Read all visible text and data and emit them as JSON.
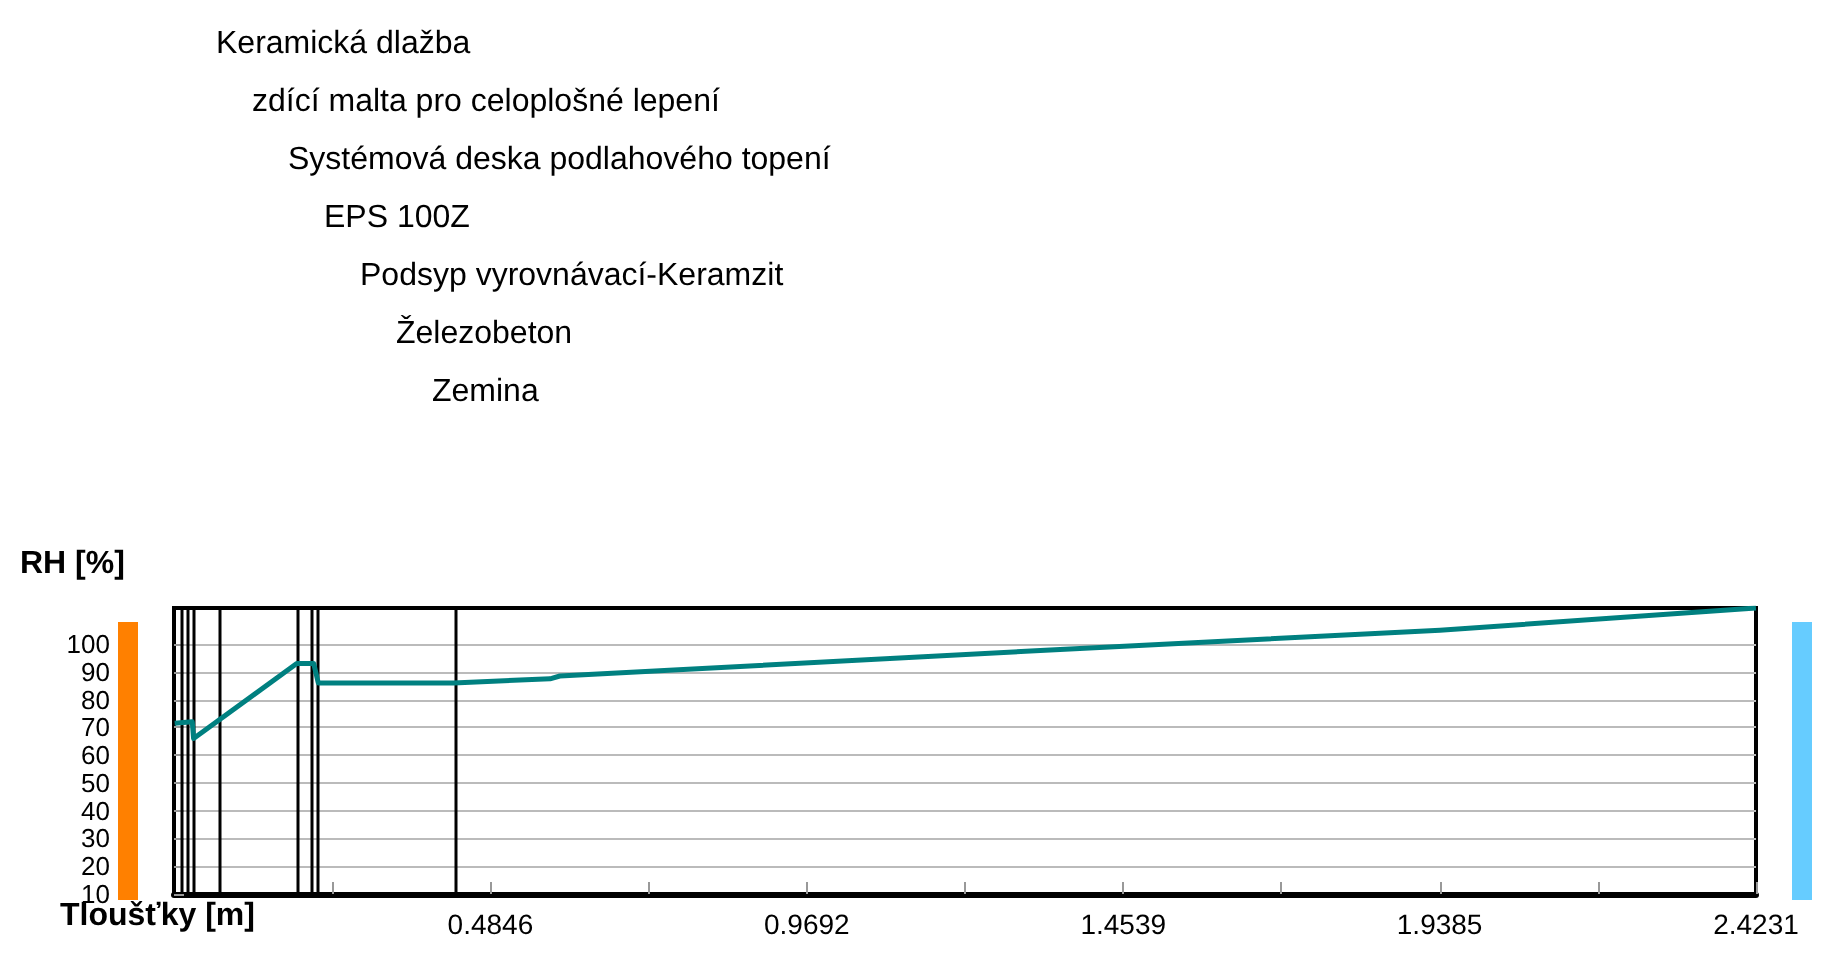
{
  "chart_data": {
    "type": "line",
    "ylabel": "RH [%]",
    "xlabel": "Tloušťky [m]",
    "x": [
      0.001,
      0.028,
      0.03,
      0.188,
      0.214,
      0.221,
      0.428,
      0.576,
      0.591,
      1.327,
      1.939,
      2.423
    ],
    "series": [
      {
        "color": "#008080",
        "values": [
          71.5,
          72,
          66,
          93,
          93,
          86,
          86,
          87.5,
          88.5,
          97.7,
          105,
          113
        ]
      }
    ],
    "xlim": [
      0,
      2.4231
    ],
    "xticks": [
      {
        "value": 0.2423,
        "label": null
      },
      0.4846,
      {
        "value": 0.7269,
        "label": null
      },
      0.9692,
      {
        "value": 1.2115,
        "label": null
      },
      1.4539,
      {
        "value": 1.6962,
        "label": null
      },
      1.9385,
      {
        "value": 2.1808,
        "label": null
      },
      2.4231
    ],
    "ylim": [
      10,
      113
    ],
    "yticks": [
      10,
      20,
      30,
      40,
      50,
      60,
      70,
      80,
      90,
      100
    ],
    "grid": "y",
    "marker": "none",
    "line_style": "solid",
    "ref_lines": [
      {
        "axis": "x",
        "value": 0.009,
        "color": "#000000"
      },
      {
        "axis": "x",
        "value": 0.019,
        "color": "#000000"
      },
      {
        "axis": "x",
        "value": 0.03,
        "color": "#000000"
      },
      {
        "axis": "x",
        "value": 0.065,
        "color": "#000000"
      },
      {
        "axis": "x",
        "value": 0.188,
        "color": "#000000"
      },
      {
        "axis": "x",
        "value": 0.214,
        "color": "#000000"
      },
      {
        "axis": "x",
        "value": 0.221,
        "color": "#000000"
      },
      {
        "axis": "x",
        "value": 0.428,
        "color": "#000000"
      }
    ],
    "annotations": [
      "Keramická dlažba",
      "zdící malta pro celoplošné lepení",
      "Systémová deska podlahového topení",
      "EPS 100Z",
      "Podsyp vyrovnávací-Keramzit",
      "Železobeton",
      "Zemina"
    ]
  }
}
